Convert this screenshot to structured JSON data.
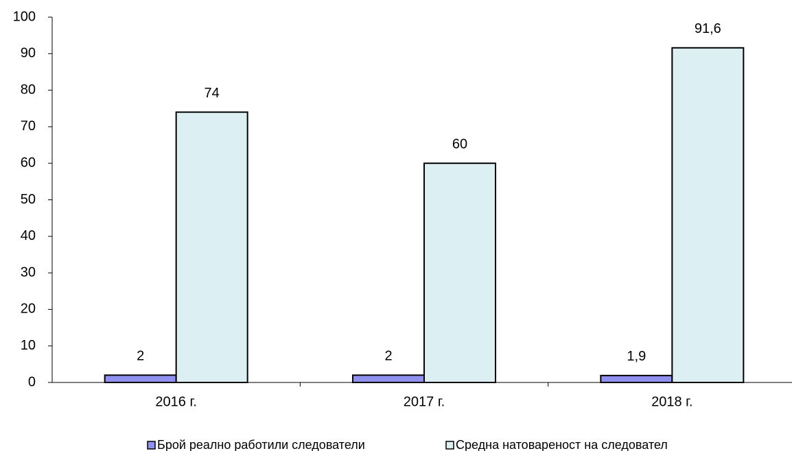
{
  "chart_data": {
    "type": "bar",
    "categories": [
      "2016 г.",
      "2017 г.",
      "2018 г."
    ],
    "series": [
      {
        "name": "Брой реално работили следователи",
        "color": "#9090f0",
        "values": [
          2,
          2,
          1.9
        ],
        "value_labels": [
          "2",
          "2",
          "1,9"
        ]
      },
      {
        "name": "Средна натовареност на следовател",
        "color": "#dcf0f4",
        "values": [
          74,
          60,
          91.6
        ],
        "value_labels": [
          "74",
          "60",
          "91,6"
        ]
      }
    ],
    "ylim": [
      0,
      100
    ],
    "yticks": [
      0,
      10,
      20,
      30,
      40,
      50,
      60,
      70,
      80,
      90,
      100
    ],
    "grid": false,
    "legend": "bottom"
  }
}
